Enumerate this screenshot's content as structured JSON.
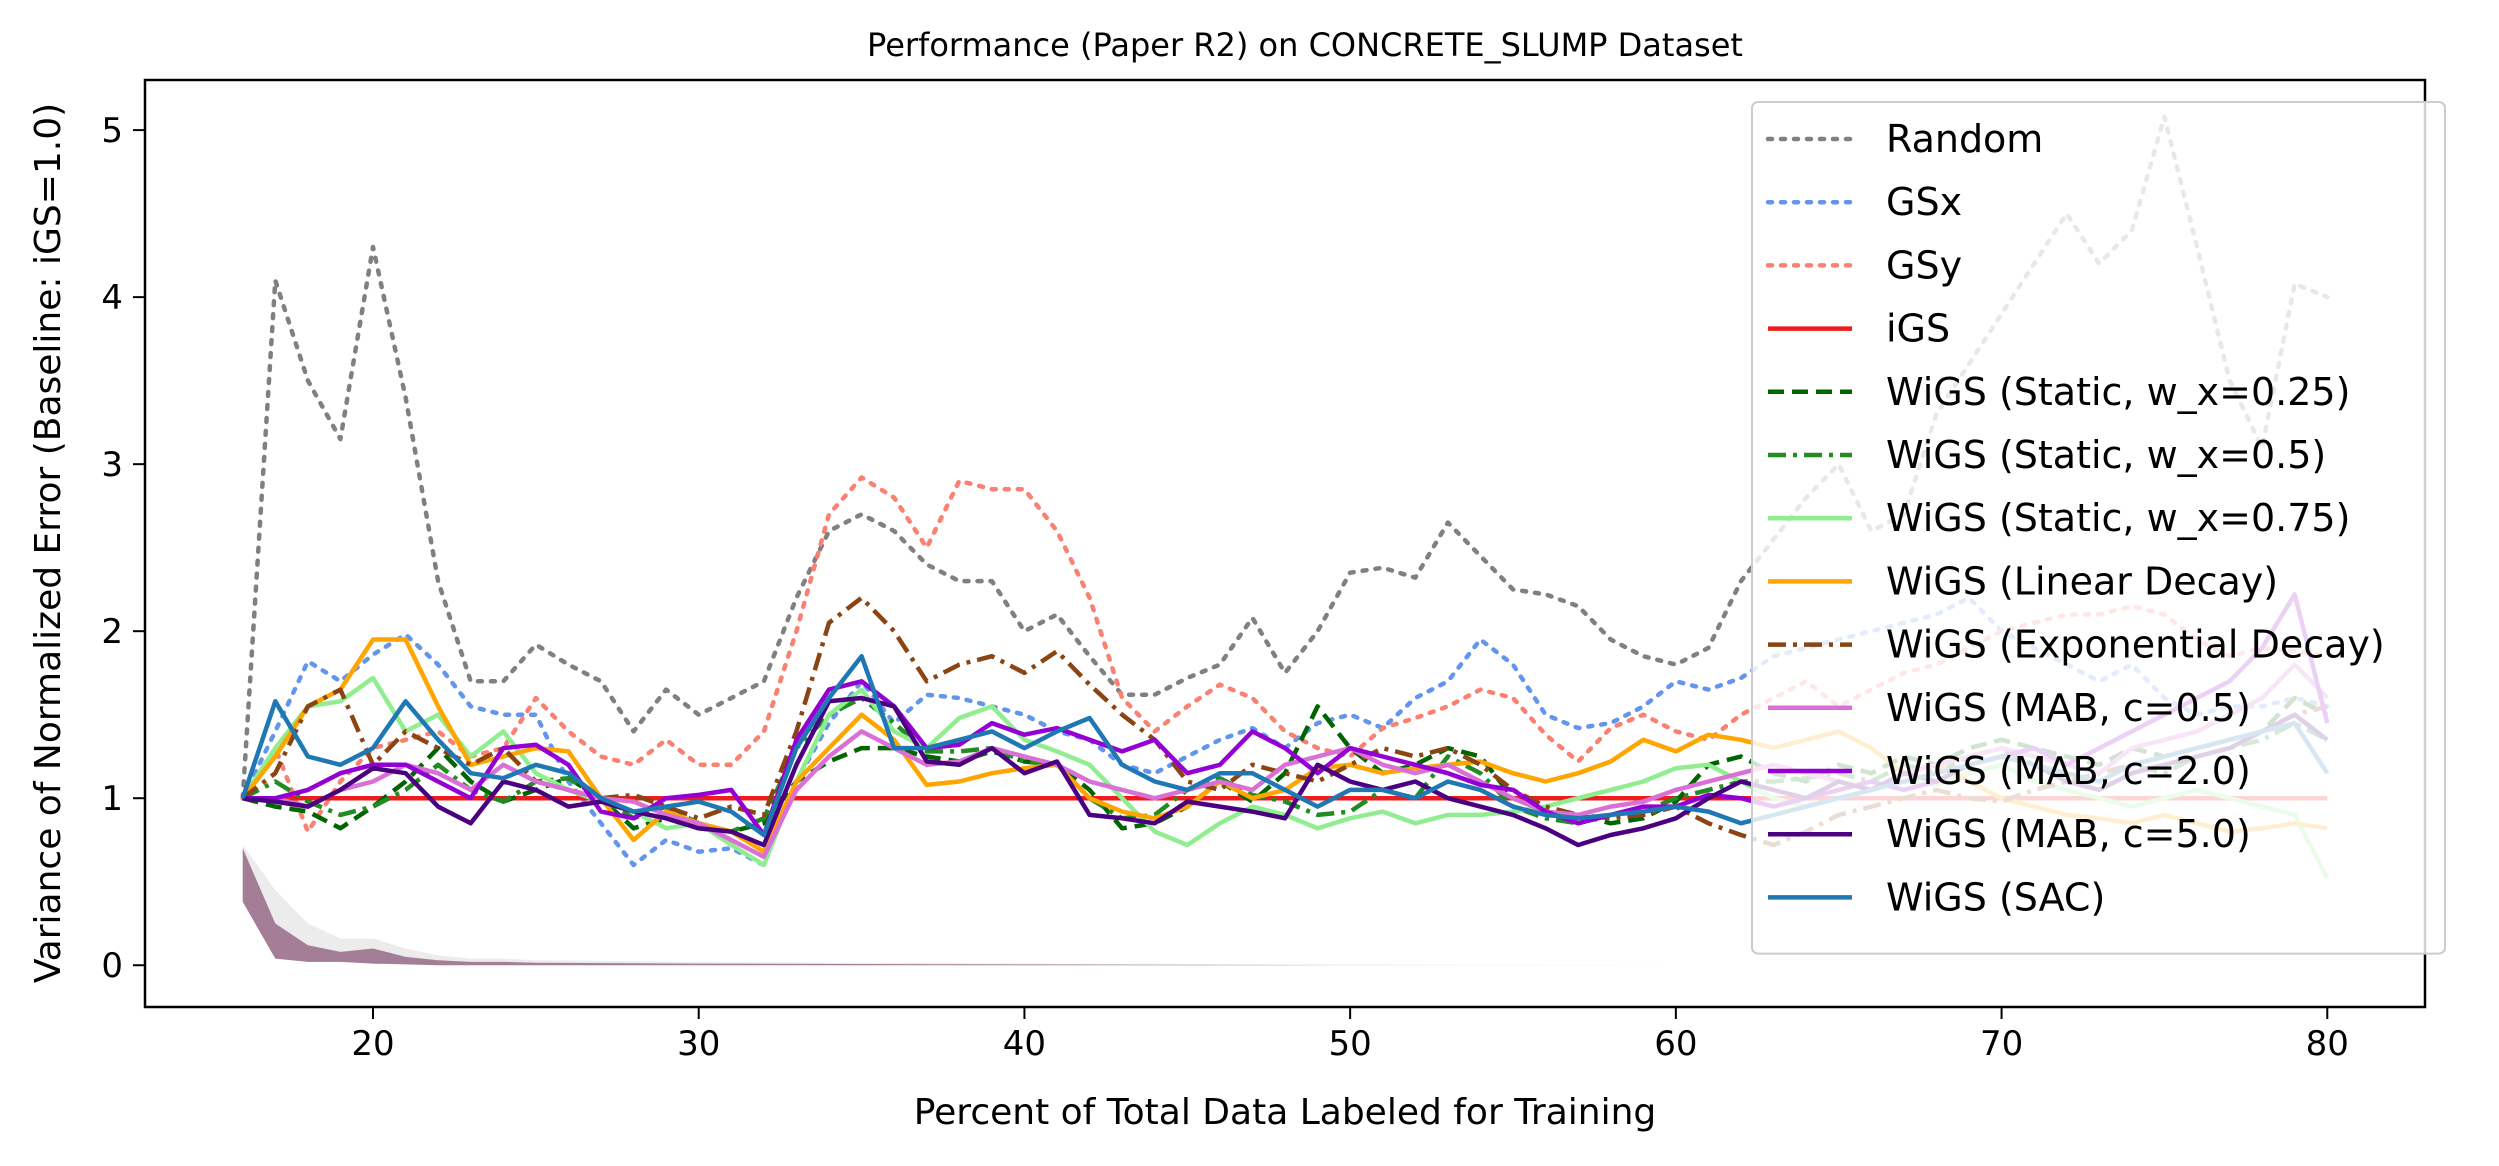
{
  "chart_data": {
    "type": "line",
    "title": "Performance (Paper R2) on CONCRETE_SLUMP Dataset",
    "xlabel": "Percent of Total Data Labeled for Training",
    "ylabel": "Variance of Normalized Error (Baseline: iGS=1.0)",
    "xlim": [
      13,
      83
    ],
    "ylim": [
      -0.25,
      5.3
    ],
    "xticks": [
      20,
      30,
      40,
      50,
      60,
      70,
      80
    ],
    "yticks": [
      0,
      1,
      2,
      3,
      4,
      5
    ],
    "grid": false,
    "legend_position": "upper-right",
    "x": [
      16,
      17,
      18,
      19,
      20,
      21,
      22,
      23,
      24,
      25,
      26,
      27,
      28,
      29,
      30,
      31,
      32,
      33,
      34,
      35,
      36,
      37,
      38,
      39,
      40,
      41,
      42,
      43,
      44,
      45,
      46,
      47,
      48,
      49,
      50,
      51,
      52,
      53,
      54,
      55,
      56,
      57,
      58,
      59,
      60,
      61,
      62,
      63,
      64,
      65,
      66,
      67,
      68,
      69,
      70,
      71,
      72,
      73,
      74,
      75,
      76,
      77,
      78,
      79,
      80
    ],
    "series": [
      {
        "name": "Random",
        "color": "#808080",
        "dash": "dotted",
        "values": [
          1.0,
          4.1,
          3.5,
          3.15,
          4.3,
          3.4,
          2.3,
          1.7,
          1.7,
          1.92,
          1.8,
          1.7,
          1.4,
          1.65,
          1.5,
          1.6,
          1.7,
          2.2,
          2.6,
          2.7,
          2.6,
          2.4,
          2.3,
          2.3,
          2.0,
          2.1,
          1.85,
          1.62,
          1.62,
          1.72,
          1.8,
          2.08,
          1.75,
          2.0,
          2.35,
          2.38,
          2.32,
          2.65,
          2.45,
          2.25,
          2.22,
          2.15,
          1.95,
          1.85,
          1.8,
          1.9,
          2.3,
          2.55,
          2.8,
          3.0,
          2.6,
          2.7,
          3.3,
          3.6,
          3.9,
          4.2,
          4.5,
          4.2,
          4.4,
          5.08,
          4.3,
          3.5,
          3.1,
          4.08,
          4.0
        ]
      },
      {
        "name": "GSx",
        "color": "#6495ed",
        "dash": "dotted",
        "values": [
          1.0,
          1.4,
          1.82,
          1.7,
          1.86,
          1.98,
          1.8,
          1.55,
          1.5,
          1.5,
          1.1,
          0.85,
          0.6,
          0.75,
          0.68,
          0.7,
          0.6,
          1.1,
          1.45,
          1.7,
          1.45,
          1.62,
          1.6,
          1.55,
          1.5,
          1.4,
          1.35,
          1.2,
          1.15,
          1.25,
          1.35,
          1.42,
          1.3,
          1.45,
          1.5,
          1.42,
          1.6,
          1.7,
          1.95,
          1.8,
          1.5,
          1.42,
          1.45,
          1.55,
          1.7,
          1.65,
          1.72,
          1.85,
          1.9,
          1.95,
          2.0,
          2.05,
          2.1,
          2.2,
          2.0,
          1.9,
          1.8,
          1.7,
          1.8,
          1.6,
          1.5,
          1.55,
          1.55,
          1.6,
          1.55
        ]
      },
      {
        "name": "GSy",
        "color": "#fa8072",
        "dash": "dotted",
        "values": [
          1.0,
          1.3,
          0.8,
          1.1,
          1.3,
          1.35,
          1.4,
          1.25,
          1.3,
          1.6,
          1.4,
          1.25,
          1.2,
          1.35,
          1.2,
          1.2,
          1.4,
          2.0,
          2.7,
          2.92,
          2.8,
          2.5,
          2.9,
          2.85,
          2.85,
          2.6,
          2.2,
          1.6,
          1.4,
          1.55,
          1.68,
          1.6,
          1.4,
          1.3,
          1.25,
          1.42,
          1.48,
          1.55,
          1.65,
          1.6,
          1.38,
          1.22,
          1.42,
          1.5,
          1.4,
          1.35,
          1.5,
          1.6,
          1.7,
          1.55,
          1.65,
          1.75,
          1.8,
          1.9,
          2.0,
          2.05,
          2.1,
          2.1,
          2.15,
          2.1,
          1.95,
          1.85,
          1.9,
          1.88,
          1.85
        ]
      },
      {
        "name": "iGS",
        "color": "#ee1c1c",
        "dash": "solid",
        "values": [
          1.0,
          1.0,
          1.0,
          1.0,
          1.0,
          1.0,
          1.0,
          1.0,
          1.0,
          1.0,
          1.0,
          1.0,
          1.0,
          1.0,
          1.0,
          1.0,
          1.0,
          1.0,
          1.0,
          1.0,
          1.0,
          1.0,
          1.0,
          1.0,
          1.0,
          1.0,
          1.0,
          1.0,
          1.0,
          1.0,
          1.0,
          1.0,
          1.0,
          1.0,
          1.0,
          1.0,
          1.0,
          1.0,
          1.0,
          1.0,
          1.0,
          1.0,
          1.0,
          1.0,
          1.0,
          1.0,
          1.0,
          1.0,
          1.0,
          1.0,
          1.0,
          1.0,
          1.0,
          1.0,
          1.0,
          1.0,
          1.0,
          1.0,
          1.0,
          1.0,
          1.0,
          1.0,
          1.0,
          1.0,
          1.0
        ]
      },
      {
        "name": "WiGS (Static, w_x=0.25)",
        "color": "#006400",
        "dash": "dashed",
        "values": [
          1.0,
          0.95,
          0.92,
          0.82,
          0.95,
          1.1,
          1.3,
          1.1,
          0.98,
          1.05,
          1.12,
          1.0,
          0.82,
          0.88,
          0.82,
          0.8,
          0.85,
          1.1,
          1.22,
          1.3,
          1.3,
          1.25,
          1.22,
          1.28,
          1.22,
          1.2,
          1.05,
          0.82,
          0.85,
          0.95,
          1.1,
          0.98,
          1.15,
          1.55,
          1.3,
          1.15,
          1.2,
          1.3,
          1.25,
          1.0,
          0.92,
          0.9,
          0.85,
          0.88,
          0.98,
          1.2,
          1.25,
          1.15,
          1.1,
          1.2,
          1.15,
          1.25,
          1.2,
          1.3,
          1.35,
          1.3,
          1.25,
          1.2,
          1.3,
          1.25,
          1.3,
          1.35,
          1.4,
          1.6,
          1.5
        ]
      },
      {
        "name": "WiGS (Static, w_x=0.5)",
        "color": "#228b22",
        "dash": "dashdot",
        "values": [
          1.0,
          1.1,
          0.98,
          0.9,
          0.95,
          1.05,
          1.2,
          1.05,
          0.98,
          1.1,
          1.12,
          1.0,
          0.88,
          0.95,
          0.85,
          0.8,
          0.88,
          1.3,
          1.5,
          1.6,
          1.45,
          1.28,
          1.28,
          1.3,
          1.22,
          1.2,
          1.0,
          0.88,
          0.9,
          1.05,
          1.12,
          1.02,
          0.98,
          0.9,
          0.92,
          1.05,
          1.0,
          1.25,
          1.15,
          0.95,
          0.88,
          0.85,
          0.9,
          0.92,
          1.0,
          1.05,
          1.1,
          1.1,
          1.12,
          1.15,
          1.1,
          1.2,
          1.15,
          1.25,
          1.3,
          1.2,
          1.15,
          1.1,
          1.2,
          1.15,
          1.25,
          1.3,
          1.35,
          1.45,
          1.35
        ]
      },
      {
        "name": "WiGS (Static, w_x=0.75)",
        "color": "#90ee90",
        "dash": "solid",
        "values": [
          1.0,
          1.3,
          1.55,
          1.58,
          1.72,
          1.4,
          1.5,
          1.25,
          1.4,
          1.15,
          1.05,
          0.98,
          0.92,
          0.82,
          0.85,
          0.72,
          0.6,
          1.1,
          1.5,
          1.65,
          1.4,
          1.3,
          1.48,
          1.55,
          1.35,
          1.28,
          1.2,
          1.0,
          0.8,
          0.72,
          0.85,
          0.95,
          0.9,
          0.82,
          0.88,
          0.92,
          0.85,
          0.9,
          0.9,
          0.92,
          0.95,
          1.0,
          1.05,
          1.1,
          1.18,
          1.2,
          1.1,
          1.0,
          0.95,
          1.0,
          1.05,
          1.1,
          1.08,
          1.15,
          1.2,
          1.1,
          1.05,
          1.0,
          0.95,
          1.0,
          1.05,
          1.0,
          0.95,
          0.9,
          0.52
        ]
      },
      {
        "name": "WiGS (Linear Decay)",
        "color": "#ffa500",
        "dash": "solid",
        "values": [
          1.0,
          1.25,
          1.55,
          1.65,
          1.95,
          1.95,
          1.55,
          1.2,
          1.25,
          1.3,
          1.28,
          1.0,
          0.75,
          0.92,
          0.85,
          0.8,
          0.68,
          1.1,
          1.3,
          1.5,
          1.35,
          1.08,
          1.1,
          1.15,
          1.18,
          1.2,
          1.0,
          0.92,
          0.88,
          0.95,
          1.1,
          1.0,
          1.05,
          1.18,
          1.2,
          1.15,
          1.18,
          1.2,
          1.22,
          1.15,
          1.1,
          1.15,
          1.22,
          1.35,
          1.28,
          1.38,
          1.35,
          1.3,
          1.35,
          1.4,
          1.3,
          1.15,
          1.2,
          1.1,
          1.0,
          0.95,
          0.9,
          0.88,
          0.85,
          0.9,
          0.85,
          0.8,
          0.82,
          0.85,
          0.82
        ]
      },
      {
        "name": "WiGS (Exponential Decay)",
        "color": "#8b4513",
        "dash": "dashdot",
        "values": [
          1.0,
          1.15,
          1.55,
          1.65,
          1.2,
          1.4,
          1.3,
          1.2,
          1.3,
          1.1,
          1.05,
          1.0,
          1.02,
          0.95,
          0.88,
          0.95,
          0.9,
          1.4,
          2.05,
          2.2,
          2.0,
          1.7,
          1.8,
          1.85,
          1.75,
          1.88,
          1.68,
          1.5,
          1.35,
          1.1,
          1.05,
          1.2,
          1.15,
          1.1,
          1.2,
          1.3,
          1.25,
          1.3,
          1.2,
          1.05,
          0.95,
          0.9,
          0.88,
          0.9,
          0.95,
          0.85,
          0.78,
          0.72,
          0.8,
          0.9,
          0.95,
          1.0,
          1.05,
          1.0,
          0.98,
          1.05,
          1.1,
          1.15,
          1.2,
          1.25,
          1.3,
          1.35,
          1.4,
          1.5,
          1.55
        ]
      },
      {
        "name": "WiGS (MAB, c=0.5)",
        "color": "#da70d6",
        "dash": "solid",
        "values": [
          1.0,
          1.0,
          0.95,
          1.05,
          1.1,
          1.2,
          1.15,
          1.05,
          1.2,
          1.1,
          1.05,
          1.0,
          0.98,
          0.9,
          0.85,
          0.75,
          0.65,
          1.05,
          1.25,
          1.4,
          1.3,
          1.2,
          1.22,
          1.3,
          1.25,
          1.2,
          1.1,
          1.05,
          1.0,
          1.05,
          1.1,
          1.05,
          1.2,
          1.25,
          1.3,
          1.2,
          1.15,
          1.2,
          1.1,
          1.0,
          0.92,
          0.9,
          0.95,
          0.98,
          1.05,
          1.1,
          1.15,
          1.2,
          1.15,
          1.1,
          1.05,
          1.15,
          1.2,
          1.25,
          1.3,
          1.25,
          1.2,
          1.15,
          1.3,
          1.35,
          1.4,
          1.5,
          1.6,
          1.8,
          1.6
        ]
      },
      {
        "name": "WiGS (MAB, c=2.0)",
        "color": "#9400d3",
        "dash": "solid",
        "values": [
          1.0,
          1.0,
          1.05,
          1.15,
          1.2,
          1.2,
          1.1,
          1.0,
          1.3,
          1.32,
          1.2,
          0.92,
          0.88,
          1.0,
          1.02,
          1.05,
          0.78,
          1.35,
          1.65,
          1.7,
          1.55,
          1.3,
          1.32,
          1.45,
          1.38,
          1.42,
          1.35,
          1.28,
          1.35,
          1.15,
          1.2,
          1.4,
          1.3,
          1.15,
          1.3,
          1.25,
          1.2,
          1.15,
          1.08,
          1.05,
          0.92,
          0.85,
          0.9,
          0.95,
          0.95,
          1.02,
          1.0,
          0.95,
          1.0,
          1.05,
          1.1,
          1.05,
          1.1,
          1.2,
          1.25,
          1.3,
          1.2,
          1.3,
          1.4,
          1.5,
          1.6,
          1.7,
          1.9,
          2.22,
          1.45
        ]
      },
      {
        "name": "WiGS (MAB, c=5.0)",
        "color": "#4b0082",
        "dash": "solid",
        "values": [
          1.0,
          0.98,
          0.95,
          1.05,
          1.18,
          1.15,
          0.95,
          0.85,
          1.1,
          1.05,
          0.95,
          0.98,
          0.92,
          0.88,
          0.82,
          0.8,
          0.72,
          1.2,
          1.58,
          1.6,
          1.55,
          1.22,
          1.2,
          1.3,
          1.15,
          1.22,
          0.9,
          0.88,
          0.85,
          0.98,
          0.95,
          0.92,
          0.88,
          1.2,
          1.1,
          1.05,
          1.1,
          1.0,
          0.95,
          0.9,
          0.82,
          0.72,
          0.78,
          0.82,
          0.88,
          1.0,
          1.1,
          1.05,
          1.0,
          1.1,
          1.05,
          1.15,
          1.1,
          1.2,
          1.25,
          1.2,
          1.1,
          1.05,
          1.15,
          1.2,
          1.25,
          1.3,
          1.4,
          1.5,
          1.35
        ]
      },
      {
        "name": "WiGS (SAC)",
        "color": "#1f77b4",
        "dash": "solid",
        "values": [
          1.0,
          1.58,
          1.25,
          1.2,
          1.3,
          1.58,
          1.35,
          1.15,
          1.12,
          1.2,
          1.15,
          1.0,
          0.92,
          0.95,
          0.98,
          0.92,
          0.78,
          1.3,
          1.6,
          1.85,
          1.3,
          1.3,
          1.35,
          1.4,
          1.3,
          1.4,
          1.48,
          1.2,
          1.1,
          1.05,
          1.15,
          1.15,
          1.05,
          0.95,
          1.05,
          1.05,
          1.0,
          1.1,
          1.05,
          0.95,
          0.9,
          0.88,
          0.9,
          0.92,
          0.95,
          0.92,
          0.85,
          0.9,
          0.95,
          1.0,
          1.05,
          1.1,
          1.15,
          1.2,
          1.25,
          1.2,
          1.15,
          1.1,
          1.2,
          1.25,
          1.3,
          1.35,
          1.4,
          1.45,
          1.15
        ]
      }
    ],
    "variance_bands": {
      "color": "#8b5a7a",
      "x": [
        16,
        17,
        18,
        19,
        20,
        21,
        22,
        23,
        24,
        25,
        30,
        40,
        50,
        60,
        70,
        80
      ],
      "low": [
        0.38,
        0.04,
        0.02,
        0.02,
        0.01,
        0.005,
        0.0,
        0.0,
        0.0,
        0.0,
        0.0,
        0.0,
        0.0,
        0.0,
        0.0,
        0.0
      ],
      "high": [
        0.7,
        0.25,
        0.12,
        0.08,
        0.1,
        0.05,
        0.03,
        0.02,
        0.02,
        0.015,
        0.01,
        0.005,
        0.0,
        0.0,
        0.0,
        0.0
      ],
      "light_high": [
        0.72,
        0.45,
        0.25,
        0.16,
        0.16,
        0.1,
        0.06,
        0.04,
        0.04,
        0.03,
        0.02,
        0.01,
        0.005,
        0.0,
        0.0,
        0.0
      ]
    }
  }
}
